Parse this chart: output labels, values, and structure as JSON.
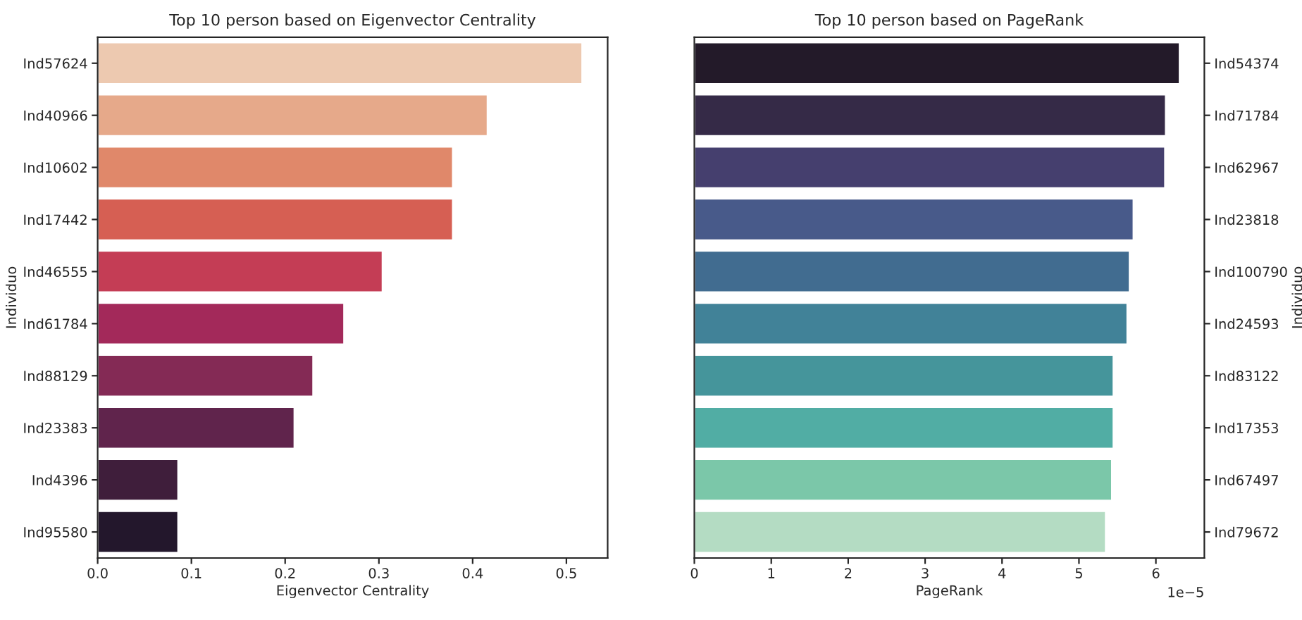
{
  "chart_data": [
    {
      "type": "bar",
      "orientation": "horizontal",
      "title": "Top 10 person based on Eigenvector Centrality",
      "xlabel": "Eigenvector Centrality",
      "ylabel": "Individuo",
      "categories": [
        "Ind57624",
        "Ind40966",
        "Ind10602",
        "Ind17442",
        "Ind46555",
        "Ind61784",
        "Ind88129",
        "Ind23383",
        "Ind4396",
        "Ind95580"
      ],
      "values": [
        0.517,
        0.416,
        0.379,
        0.379,
        0.304,
        0.263,
        0.23,
        0.21,
        0.086,
        0.086
      ],
      "colors": [
        "#edc9b0",
        "#e6a98a",
        "#e0886a",
        "#d65f53",
        "#c43d55",
        "#a3295a",
        "#842a55",
        "#60244c",
        "#3f1e3b",
        "#23172c"
      ],
      "xlim": [
        0,
        0.544
      ],
      "xticks": [
        {
          "value": 0,
          "label": "0.0"
        },
        0.1,
        0.2,
        0.3,
        0.4,
        0.5
      ],
      "grid": false,
      "legend": false
    },
    {
      "type": "bar",
      "orientation": "horizontal",
      "title": "Top 10 person based on PageRank",
      "xlabel": "PageRank",
      "ylabel": "Individuo",
      "categories": [
        "Ind54374",
        "Ind71784",
        "Ind62967",
        "Ind23818",
        "Ind100790",
        "Ind24593",
        "Ind83122",
        "Ind17353",
        "Ind67497",
        "Ind79672"
      ],
      "values": [
        6.31,
        6.13,
        6.12,
        5.71,
        5.66,
        5.63,
        5.45,
        5.45,
        5.43,
        5.35
      ],
      "colors": [
        "#231a29",
        "#352a47",
        "#453f6e",
        "#485a8a",
        "#416c90",
        "#418298",
        "#45959b",
        "#51ada4",
        "#7bc7a9",
        "#b4dcc3"
      ],
      "xlim": [
        0,
        6.63
      ],
      "xticks": [
        0,
        1,
        2,
        3,
        4,
        5,
        6
      ],
      "annotations": [
        "1e−5"
      ],
      "grid": false,
      "legend": false
    }
  ]
}
